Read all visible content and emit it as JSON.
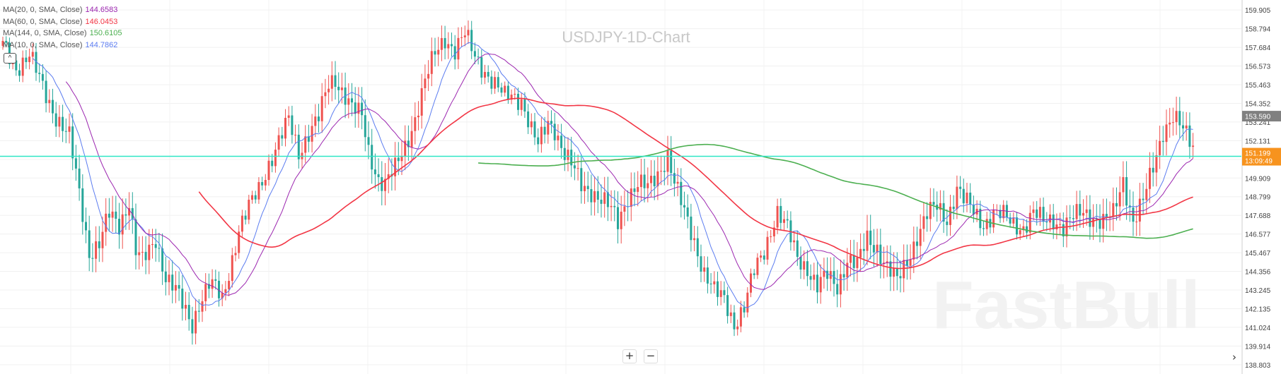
{
  "title": "USDJPY-1D-Chart",
  "watermark": "FastBull",
  "indicators": [
    {
      "label": "MA(20, 0, SMA, Close)",
      "value": "144.6583",
      "color": "#9c27b0"
    },
    {
      "label": "MA(60, 0, SMA, Close)",
      "value": "146.0453",
      "color": "#f23645"
    },
    {
      "label": "MA(144, 0, SMA, Close)",
      "value": "150.6105",
      "color": "#4caf50"
    },
    {
      "label": "MA(10, 0, SMA, Close)",
      "value": "144.7862",
      "color": "#5b7cf0"
    }
  ],
  "controls": {
    "collapse": "^",
    "zoom_in": "+",
    "zoom_out": "−",
    "scroll_right": "›"
  },
  "colors": {
    "up": "#ef5350",
    "down": "#26a69a",
    "price_line": "#2ee6c5",
    "price_badge": "#f7931e",
    "last_close_badge": "#808080"
  },
  "chart_data": {
    "type": "candlestick",
    "title": "USDJPY-1D-Chart",
    "yaxis": {
      "side": "right",
      "range": [
        138.25,
        160.5
      ],
      "ticks": [
        "159.905",
        "158.794",
        "157.684",
        "156.573",
        "155.463",
        "154.352",
        "153.241",
        "152.131",
        "151.020",
        "149.909",
        "148.799",
        "147.688",
        "146.577",
        "145.467",
        "144.356",
        "143.245",
        "142.135",
        "141.024",
        "139.914",
        "138.803"
      ]
    },
    "current_price": {
      "value": "151.199",
      "countdown": "13:09:49"
    },
    "last_close_label": "153.590",
    "grid": true,
    "close_path": [
      [
        0,
        157.8
      ],
      [
        4,
        156.5
      ],
      [
        8,
        157.2
      ],
      [
        12,
        155.3
      ],
      [
        16,
        153.6
      ],
      [
        20,
        152.3
      ],
      [
        23,
        149.0
      ],
      [
        26,
        145.5
      ],
      [
        29,
        146.0
      ],
      [
        32,
        147.7
      ],
      [
        35,
        147.1
      ],
      [
        38,
        148.6
      ],
      [
        40,
        145.6
      ],
      [
        42,
        144.9
      ],
      [
        44,
        145.5
      ],
      [
        46,
        146.3
      ],
      [
        49,
        144.1
      ],
      [
        52,
        143.2
      ],
      [
        55,
        141.9
      ],
      [
        57,
        141.2
      ],
      [
        59,
        142.5
      ],
      [
        62,
        143.6
      ],
      [
        64,
        143.3
      ],
      [
        66,
        142.6
      ],
      [
        68,
        144.3
      ],
      [
        71,
        146.9
      ],
      [
        74,
        148.1
      ],
      [
        77,
        149.2
      ],
      [
        80,
        150.8
      ],
      [
        83,
        152.1
      ],
      [
        86,
        153.3
      ],
      [
        89,
        151.4
      ],
      [
        92,
        152.7
      ],
      [
        95,
        153.5
      ],
      [
        98,
        155.4
      ],
      [
        100,
        155.8
      ],
      [
        103,
        154.9
      ],
      [
        105,
        154.1
      ],
      [
        108,
        153.5
      ],
      [
        110,
        151.5
      ],
      [
        113,
        149.9
      ],
      [
        115,
        149.6
      ],
      [
        118,
        150.4
      ],
      [
        121,
        151.8
      ],
      [
        124,
        153.5
      ],
      [
        127,
        155.6
      ],
      [
        130,
        157.3
      ],
      [
        133,
        158.3
      ],
      [
        136,
        157.5
      ],
      [
        139,
        158.4
      ],
      [
        142,
        157.2
      ],
      [
        145,
        156.3
      ],
      [
        148,
        155.4
      ],
      [
        151,
        154.7
      ],
      [
        153,
        154.9
      ],
      [
        156,
        154.6
      ],
      [
        159,
        152.7
      ],
      [
        161,
        151.8
      ],
      [
        164,
        153.3
      ],
      [
        166,
        152.9
      ],
      [
        169,
        151.3
      ],
      [
        172,
        150.3
      ],
      [
        174,
        149.5
      ],
      [
        177,
        149.2
      ],
      [
        180,
        148.6
      ],
      [
        183,
        148.0
      ],
      [
        185,
        147.3
      ],
      [
        188,
        148.9
      ],
      [
        191,
        149.5
      ],
      [
        194,
        149.3
      ],
      [
        197,
        150.2
      ],
      [
        200,
        151.3
      ],
      [
        202,
        149.6
      ],
      [
        205,
        147.8
      ],
      [
        208,
        146.2
      ],
      [
        211,
        144.3
      ],
      [
        214,
        143.1
      ],
      [
        217,
        142.7
      ],
      [
        220,
        141.3
      ],
      [
        223,
        142.2
      ],
      [
        226,
        144.3
      ],
      [
        229,
        145.6
      ],
      [
        231,
        146.9
      ],
      [
        233,
        147.9
      ],
      [
        236,
        146.8
      ],
      [
        239,
        145.2
      ],
      [
        242,
        144.6
      ],
      [
        245,
        143.4
      ],
      [
        248,
        144.1
      ],
      [
        251,
        143.5
      ],
      [
        254,
        145.1
      ],
      [
        257,
        144.7
      ],
      [
        260,
        146.3
      ],
      [
        263,
        145.8
      ],
      [
        266,
        144.6
      ],
      [
        269,
        143.7
      ],
      [
        272,
        145.0
      ],
      [
        275,
        146.5
      ],
      [
        278,
        147.7
      ],
      [
        281,
        148.2
      ],
      [
        284,
        147.5
      ],
      [
        287,
        149.3
      ],
      [
        289,
        148.6
      ],
      [
        292,
        147.9
      ],
      [
        295,
        147.2
      ],
      [
        298,
        147.8
      ],
      [
        301,
        147.6
      ],
      [
        304,
        147.2
      ],
      [
        307,
        147.0
      ],
      [
        310,
        147.8
      ],
      [
        313,
        147.3
      ],
      [
        316,
        147.5
      ],
      [
        319,
        147.0
      ],
      [
        322,
        147.5
      ],
      [
        325,
        147.9
      ],
      [
        328,
        147.6
      ],
      [
        331,
        147.3
      ],
      [
        334,
        147.7
      ],
      [
        337,
        149.8
      ],
      [
        340,
        147.4
      ],
      [
        343,
        148.5
      ],
      [
        346,
        150.5
      ],
      [
        349,
        152.8
      ],
      [
        352,
        153.6
      ],
      [
        355,
        152.7
      ],
      [
        358,
        151.8
      ]
    ],
    "ma": [
      {
        "period": 10,
        "color": "#5b7cf0",
        "value": "144.7862"
      },
      {
        "period": 20,
        "color": "#9c27b0",
        "value": "144.6583"
      },
      {
        "period": 60,
        "color": "#f23645",
        "value": "146.0453"
      },
      {
        "period": 144,
        "color": "#4caf50",
        "value": "150.6105"
      }
    ]
  }
}
